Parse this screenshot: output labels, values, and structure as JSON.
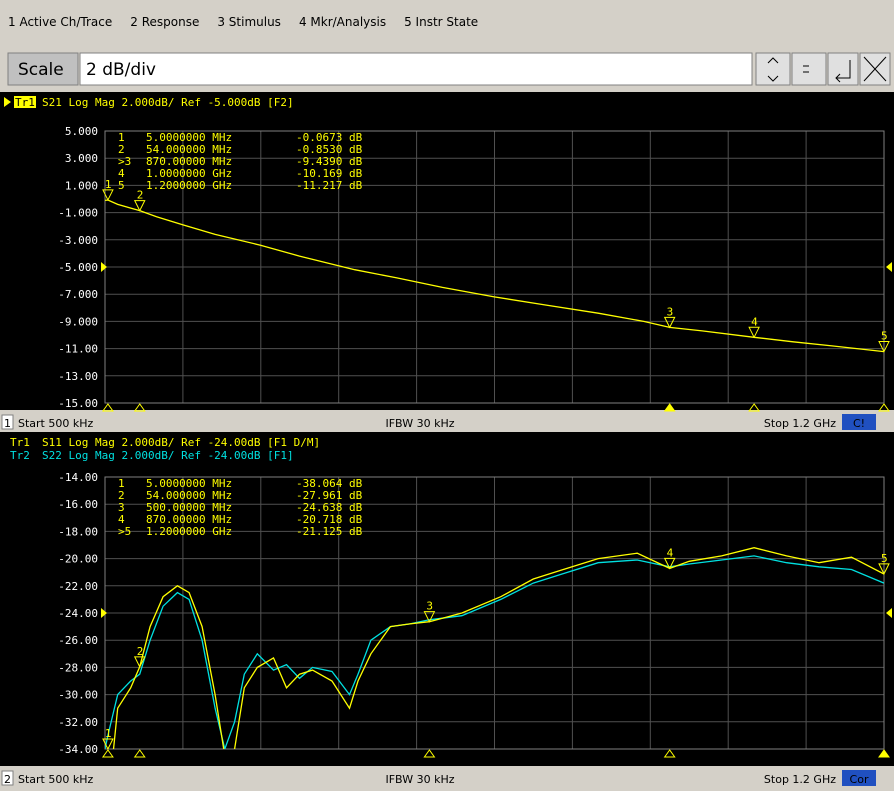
{
  "menu": [
    "1 Active Ch/Trace",
    "2 Response",
    "3 Stimulus",
    "4 Mkr/Analysis",
    "5 Instr State"
  ],
  "scale": {
    "label": "Scale",
    "value": "2 dB/div"
  },
  "panels": [
    {
      "headers": [
        {
          "name": "Tr1",
          "text": "S21 Log Mag 2.000dB/ Ref -5.000dB [F2]",
          "color": "#ffff00"
        }
      ],
      "xlim": [
        0.5,
        1200
      ],
      "yticks": [
        {
          "value": 5,
          "label": "5.000"
        },
        {
          "value": 3,
          "label": "3.000"
        },
        {
          "value": 1,
          "label": "1.000"
        },
        {
          "value": -1,
          "label": "-1.000"
        },
        {
          "value": -3,
          "label": "-3.000"
        },
        {
          "value": -5,
          "label": "-5.000"
        },
        {
          "value": -7,
          "label": "-7.000"
        },
        {
          "value": -9,
          "label": "-9.000"
        },
        {
          "value": -11,
          "label": "-11.00"
        },
        {
          "value": -13,
          "label": "-13.00"
        },
        {
          "value": -15,
          "label": "-15.00"
        }
      ],
      "markers": [
        {
          "id": "1",
          "stimulus": "5.0000000 MHz",
          "response": "-0.0673 dB"
        },
        {
          "id": "2",
          "stimulus": "54.000000 MHz",
          "response": "-0.8530 dB"
        },
        {
          "id": ">3",
          "stimulus": "870.00000 MHz",
          "response": "-9.4390 dB"
        },
        {
          "id": "4",
          "stimulus": "1.0000000 GHz",
          "response": "-10.169 dB"
        },
        {
          "id": "5",
          "stimulus": "1.2000000 GHz",
          "response": "-11.217 dB"
        }
      ],
      "traces": [
        {
          "color": "#ffff00",
          "x": [
            0.5,
            5,
            20,
            54,
            80,
            120,
            170,
            240,
            300,
            385,
            450,
            520,
            600,
            680,
            760,
            830,
            870,
            920,
            1000,
            1060,
            1120,
            1200
          ],
          "values": [
            -0.1,
            -0.07,
            -0.4,
            -0.85,
            -1.3,
            -1.9,
            -2.6,
            -3.4,
            -4.2,
            -5.2,
            -5.8,
            -6.5,
            -7.2,
            -7.8,
            -8.4,
            -9.0,
            -9.44,
            -9.7,
            -10.17,
            -10.5,
            -10.8,
            -11.22
          ]
        }
      ],
      "status": {
        "channel": "1",
        "start": "Start 500 kHz",
        "ifbw": "IFBW 30 kHz",
        "stop": "Stop 1.2 GHz",
        "tag": "C!"
      }
    },
    {
      "headers": [
        {
          "name": "Tr1",
          "text": "S11 Log Mag 2.000dB/ Ref -24.00dB [F1 D/M]",
          "color": "#ffff00"
        },
        {
          "name": "Tr2",
          "text": "S22 Log Mag 2.000dB/ Ref -24.00dB [F1]",
          "color": "#00e0e0"
        }
      ],
      "xlim": [
        0.5,
        1200
      ],
      "yticks": [
        {
          "value": -14,
          "label": "-14.00"
        },
        {
          "value": -16,
          "label": "-16.00"
        },
        {
          "value": -18,
          "label": "-18.00"
        },
        {
          "value": -20,
          "label": "-20.00"
        },
        {
          "value": -22,
          "label": "-22.00"
        },
        {
          "value": -24,
          "label": "-24.00"
        },
        {
          "value": -26,
          "label": "-26.00"
        },
        {
          "value": -28,
          "label": "-28.00"
        },
        {
          "value": -30,
          "label": "-30.00"
        },
        {
          "value": -32,
          "label": "-32.00"
        },
        {
          "value": -34,
          "label": "-34.00"
        }
      ],
      "markers": [
        {
          "id": "1",
          "stimulus": "5.0000000 MHz",
          "response": "-38.064 dB"
        },
        {
          "id": "2",
          "stimulus": "54.000000 MHz",
          "response": "-27.961 dB"
        },
        {
          "id": "3",
          "stimulus": "500.00000 MHz",
          "response": "-24.638 dB"
        },
        {
          "id": "4",
          "stimulus": "870.00000 MHz",
          "response": "-20.718 dB"
        },
        {
          "id": ">5",
          "stimulus": "1.2000000 GHz",
          "response": "-21.125 dB"
        }
      ],
      "traces": [
        {
          "color": "#00e0e0",
          "x": [
            0.5,
            5,
            20,
            40,
            54,
            70,
            90,
            112,
            130,
            150,
            170,
            185,
            200,
            215,
            235,
            260,
            280,
            300,
            320,
            350,
            377,
            390,
            410,
            440,
            470,
            500,
            550,
            610,
            660,
            700,
            760,
            820,
            870,
            900,
            950,
            1000,
            1050,
            1100,
            1150,
            1200
          ],
          "values": [
            -34,
            -33,
            -30,
            -29,
            -28.5,
            -26,
            -23.5,
            -22.5,
            -23,
            -26,
            -31,
            -34,
            -32,
            -28.5,
            -27,
            -28.2,
            -27.8,
            -28.8,
            -28,
            -28.3,
            -30,
            -28.5,
            -26,
            -25,
            -24.8,
            -24.5,
            -24.2,
            -23,
            -21.8,
            -21.2,
            -20.3,
            -20.1,
            -20.6,
            -20.4,
            -20.1,
            -19.8,
            -20.3,
            -20.6,
            -20.8,
            -21.8
          ]
        },
        {
          "color": "#ffff00",
          "x": [
            0.5,
            5,
            20,
            40,
            54,
            70,
            90,
            112,
            130,
            150,
            170,
            185,
            200,
            215,
            235,
            260,
            280,
            300,
            320,
            350,
            377,
            390,
            410,
            440,
            470,
            500,
            550,
            610,
            660,
            700,
            760,
            820,
            870,
            900,
            950,
            1000,
            1050,
            1100,
            1150,
            1200
          ],
          "values": [
            -34.5,
            -38.06,
            -31,
            -29.5,
            -27.96,
            -25,
            -22.8,
            -22,
            -22.5,
            -25,
            -30,
            -34.5,
            -34,
            -29.5,
            -28,
            -27.3,
            -29.5,
            -28.5,
            -28.2,
            -29,
            -31,
            -29,
            -27,
            -25,
            -24.8,
            -24.64,
            -24,
            -22.8,
            -21.5,
            -20.9,
            -20,
            -19.6,
            -20.72,
            -20.2,
            -19.8,
            -19.2,
            -19.8,
            -20.3,
            -19.9,
            -21.13
          ]
        }
      ],
      "status": {
        "channel": "2",
        "start": "Start 500 kHz",
        "ifbw": "IFBW 30 kHz",
        "stop": "Stop 1.2 GHz",
        "tag": "Cor"
      }
    }
  ]
}
